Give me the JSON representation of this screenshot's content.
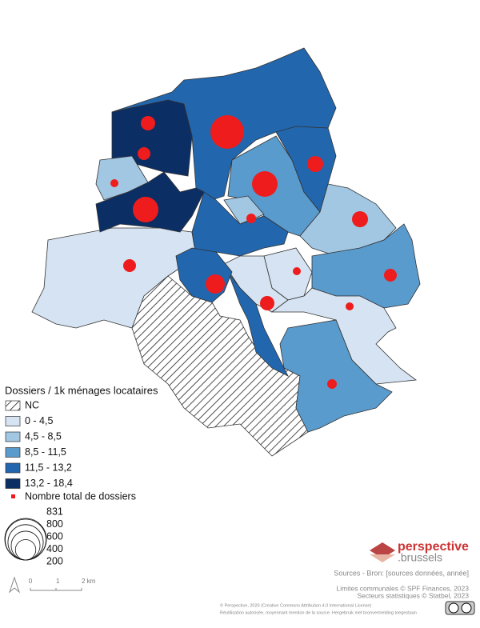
{
  "legend": {
    "title": "Dossiers / 1k ménages locataires",
    "classes": [
      {
        "label": "NC",
        "hatched": true
      },
      {
        "label": "0 - 4,5",
        "color": "#d5e3f2"
      },
      {
        "label": "4,5 - 8,5",
        "color": "#a2c7e3"
      },
      {
        "label": "8,5 - 11,5",
        "color": "#5a9bcd"
      },
      {
        "label": "11,5 - 13,2",
        "color": "#2266ad"
      },
      {
        "label": "13,2 - 18,4",
        "color": "#0b2e65"
      }
    ],
    "points_label": "Nombre total de dossiers",
    "points_color": "#ee1c1c",
    "sizes": [
      831,
      800,
      600,
      400,
      200
    ]
  },
  "scale": {
    "labels": [
      "0",
      "1",
      "2 km"
    ]
  },
  "logo": {
    "line1": "perspective",
    "line2": ".brussels"
  },
  "sources": [
    "Sources - Bron: [sources données, année]",
    "Limites communales © SPF Finances, 2023",
    "Secteurs statistiques © Statbel, 2023"
  ],
  "footer": [
    "© Perspective, 2020 (Creative Commons Attribution 4.0 International License)",
    "Réutilisation autorisée, moyennant mention de la source. Hergebruik met bronvermelding toegestaan"
  ]
}
